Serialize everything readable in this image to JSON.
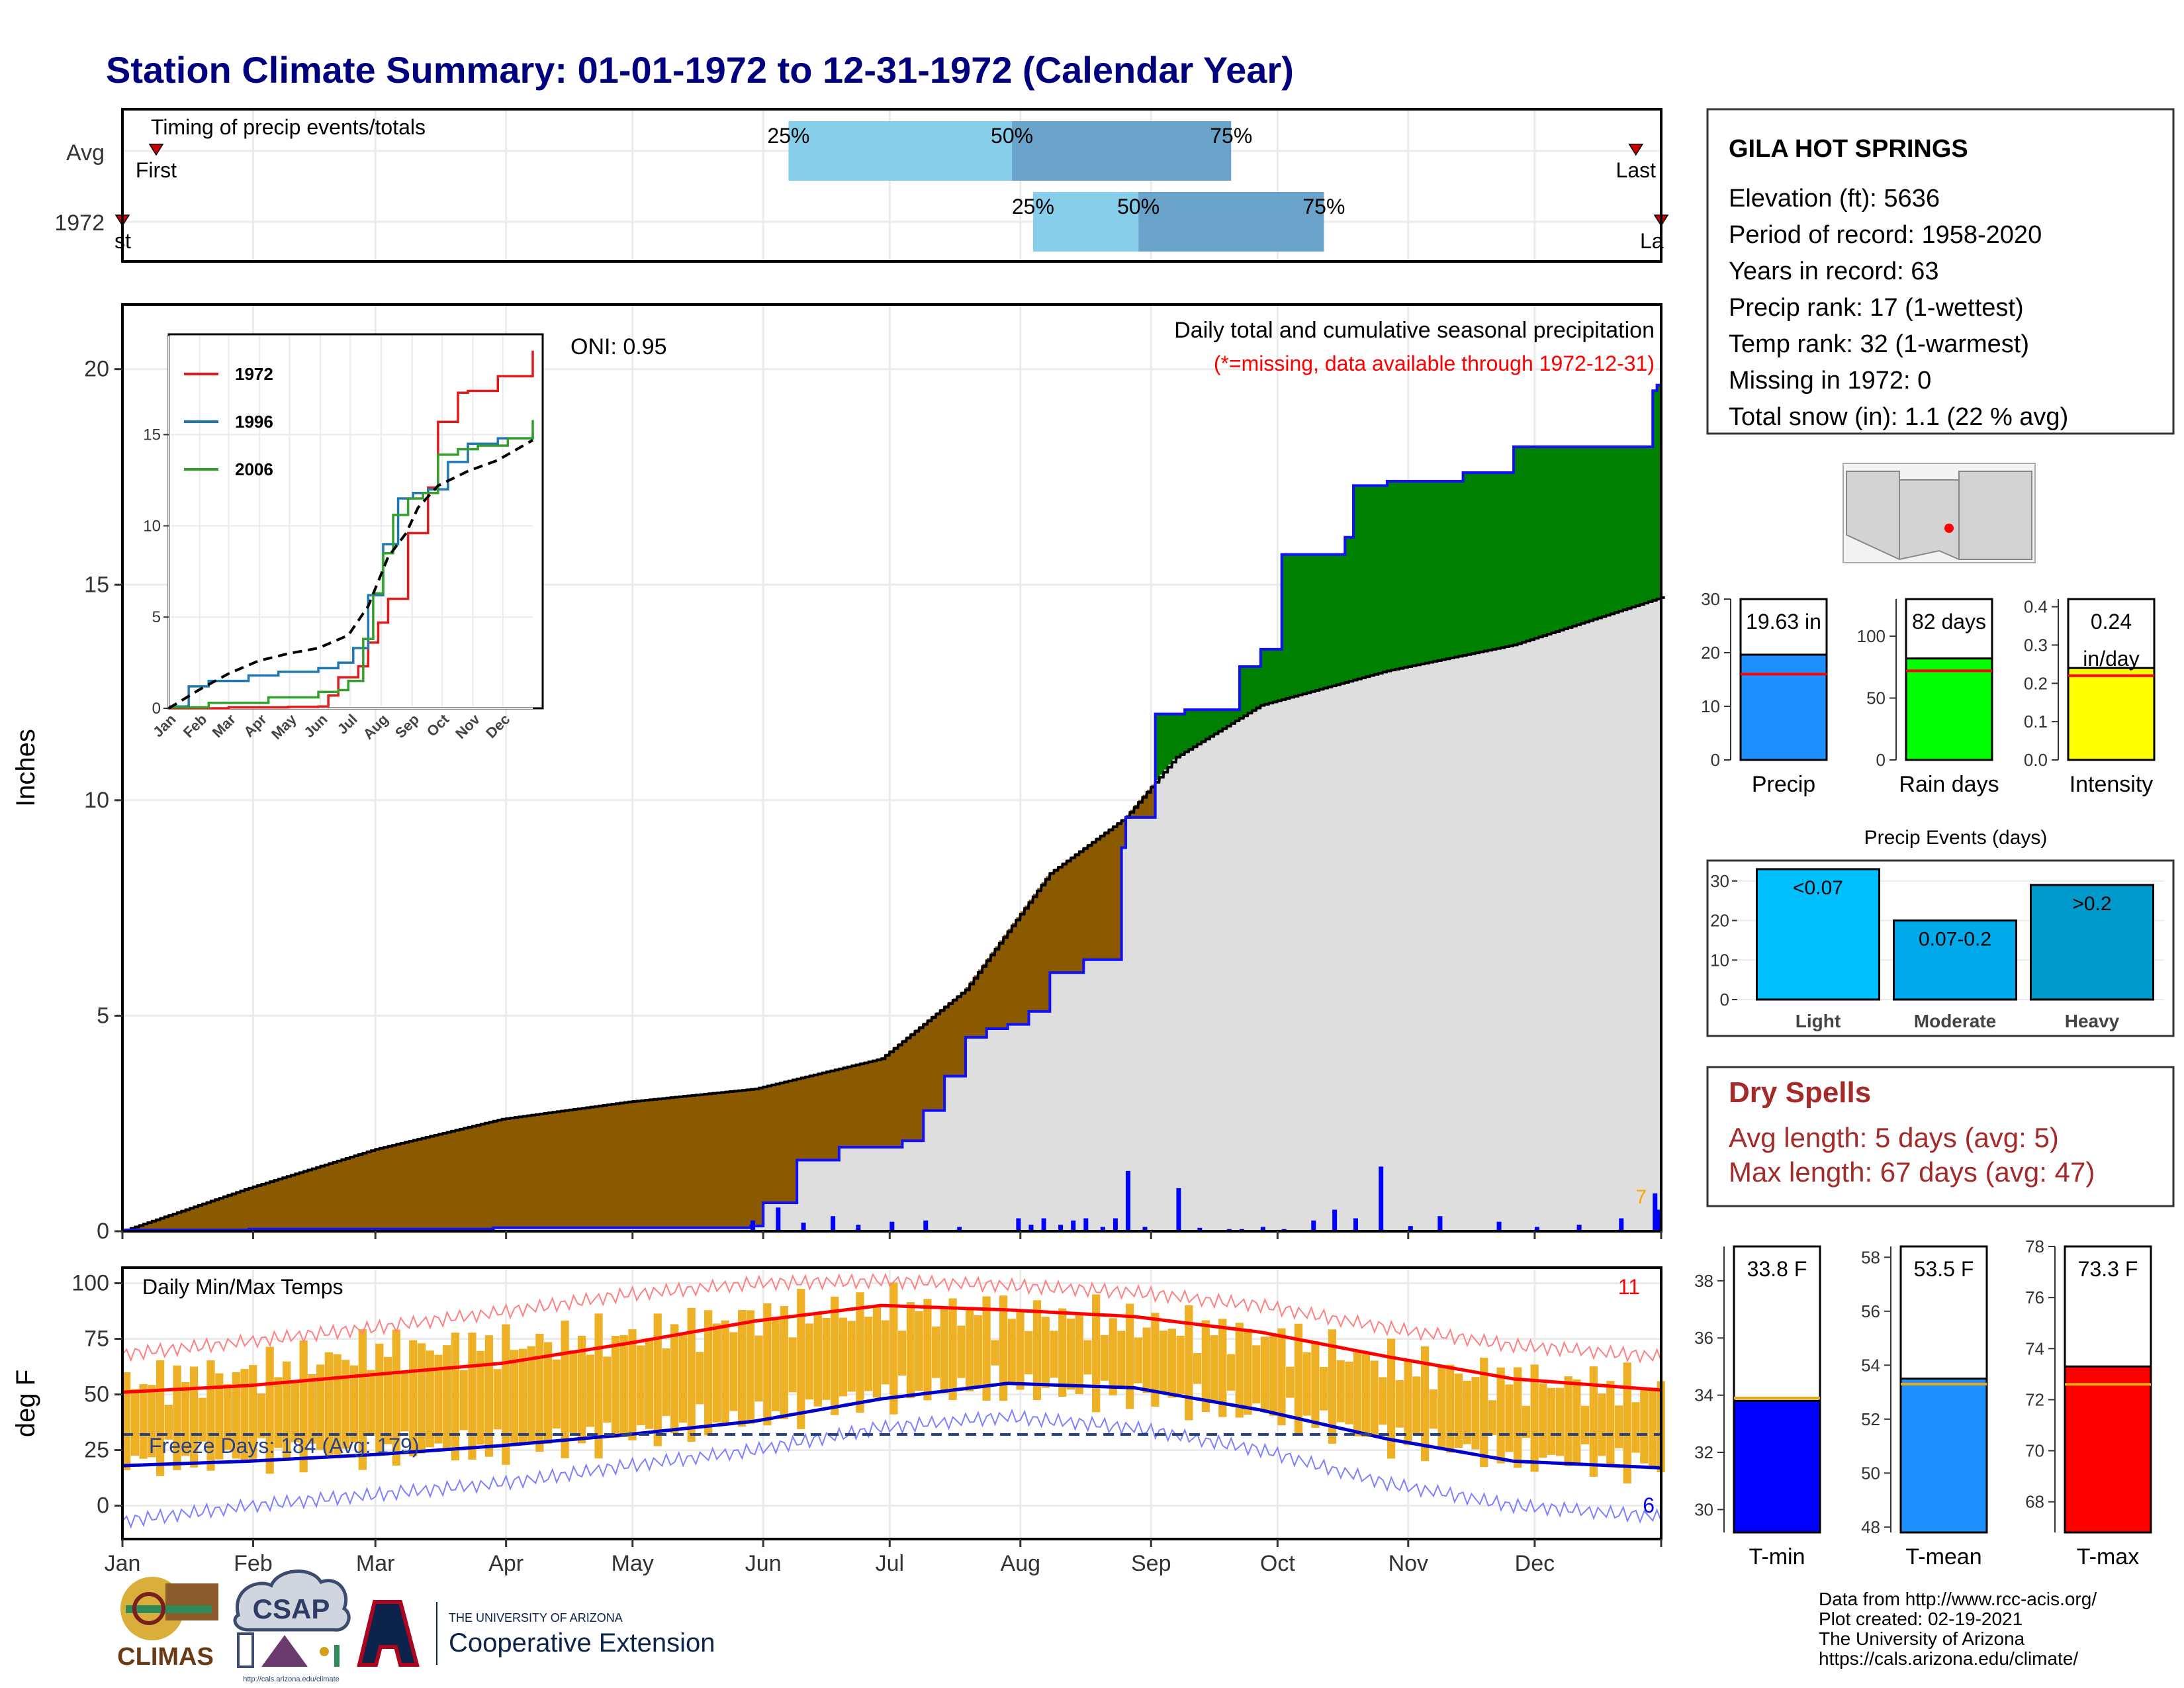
{
  "page_title": "Station Climate Summary: 01-01-1972 to 12-31-1972 (Calendar Year)",
  "colors": {
    "title": "#00007f",
    "q_light": "#87ceeb",
    "q_dark": "#6aa3c9",
    "deficit": "#8b5a00",
    "surplus": "#008000",
    "avg_area": "#dedede",
    "daily_bar": "#0000ff",
    "temp_band": "#eeb125",
    "tmax_line": "#ff0000",
    "tmin_line": "#0000cc",
    "dry_spells": "#a52a2a"
  },
  "month_labels": [
    "Jan",
    "Feb",
    "Mar",
    "Apr",
    "May",
    "Jun",
    "Jul",
    "Aug",
    "Sep",
    "Oct",
    "Nov",
    "Dec"
  ],
  "timing": {
    "title": "Timing of precip events/totals",
    "rows": [
      {
        "label": "Avg",
        "first": "First",
        "last": "Last",
        "q25": "25%",
        "q50": "50%",
        "q75": "75%",
        "first_day": 8,
        "last_day": 359,
        "q25_day": 158,
        "q50_day": 211,
        "q75_day": 263
      },
      {
        "label": "1972",
        "first": "First",
        "last": "Last",
        "q25": "25%",
        "q50": "50%",
        "q75": "75%",
        "first_day": 0,
        "last_day": 365,
        "q25_day": 216,
        "q50_day": 241,
        "q75_day": 285
      }
    ]
  },
  "precip_panel": {
    "ylabel": "Inches",
    "yticks": [
      "0",
      "5",
      "10",
      "15",
      "20"
    ],
    "oni": "ONI: 0.95",
    "title": "Daily total and cumulative seasonal precipitation",
    "subtitle": "(*=missing, data available through 1972-12-31)",
    "count_label": "7"
  },
  "inset": {
    "yticks": [
      "0",
      "5",
      "10",
      "15"
    ],
    "xticks": [
      "Jan",
      "Feb",
      "Mar",
      "Apr",
      "May",
      "Jun",
      "Jul",
      "Aug",
      "Sep",
      "Oct",
      "Nov",
      "Dec"
    ],
    "legend": [
      {
        "name": "1972",
        "color": "#e31a1c"
      },
      {
        "name": "1996",
        "color": "#1f78b4"
      },
      {
        "name": "2006",
        "color": "#33a02c"
      }
    ]
  },
  "temp_panel": {
    "ylabel": "deg F",
    "title": "Daily Min/Max Temps",
    "yticks": [
      "0",
      "25",
      "50",
      "75",
      "100"
    ],
    "freeze": "Freeze Days: 184 (Avg: 179)",
    "max_count": "11",
    "min_count": "6"
  },
  "station": {
    "name": "GILA HOT SPRINGS",
    "lines": [
      "Elevation (ft): 5636",
      "Period of record: 1958-2020",
      "Years in record: 63",
      "Precip rank: 17 (1-wettest)",
      "Temp rank: 32 (1-warmest)",
      "Missing in 1972: 0",
      "Total snow (in): 1.1 (22 % avg)"
    ]
  },
  "dry_spells": {
    "title": "Dry Spells",
    "avg": "Avg length: 5 days (avg: 5)",
    "max": "Max length: 67 days (avg: 47)"
  },
  "footer": {
    "lines": [
      "Data from http://www.rcc-acis.org/",
      "Plot created: 02-19-2021",
      "The University of Arizona",
      "https://cals.arizona.edu/climate/"
    ],
    "logo_climas": "CLIMAS",
    "logo_csap": "CSAP",
    "csap_url": "http://cals.arizona.edu/climate",
    "ua_small": "THE UNIVERSITY OF ARIZONA",
    "ua_big": "Cooperative Extension"
  },
  "chart_data": [
    {
      "type": "line",
      "name": "cumulative_precip_1972_vs_avg",
      "title": "Daily total and cumulative seasonal precipitation",
      "ylabel": "Inches",
      "ylim": [
        0,
        21.5
      ],
      "x_unit": "day of year",
      "series": [
        {
          "name": "1972",
          "x": [
            0,
            30,
            58,
            88,
            118,
            149,
            152,
            155,
            160,
            170,
            185,
            190,
            195,
            200,
            205,
            210,
            215,
            220,
            228,
            237,
            238,
            240,
            245,
            252,
            258,
            260,
            265,
            270,
            275,
            290,
            292,
            295,
            300,
            318,
            330,
            345,
            362,
            363,
            364,
            365
          ],
          "values": [
            0.03,
            0.05,
            0.05,
            0.08,
            0.08,
            0.12,
            0.66,
            0.66,
            1.65,
            1.95,
            2.1,
            2.8,
            3.6,
            4.5,
            4.7,
            4.8,
            5.1,
            6.0,
            6.3,
            8.9,
            9.6,
            9.6,
            12.0,
            12.1,
            12.1,
            12.1,
            13.1,
            13.5,
            15.7,
            16.1,
            17.3,
            17.3,
            17.4,
            17.6,
            18.2,
            18.2,
            18.2,
            19.5,
            19.63,
            19.63
          ]
        },
        {
          "name": "avg",
          "x": [
            0,
            30,
            60,
            90,
            120,
            150,
            180,
            200,
            220,
            238,
            250,
            270,
            300,
            330,
            365
          ],
          "values": [
            0,
            1.0,
            1.9,
            2.6,
            3.0,
            3.3,
            4.0,
            5.6,
            8.3,
            9.6,
            11.0,
            12.2,
            13.0,
            13.6,
            14.7
          ]
        }
      ]
    },
    {
      "type": "bar",
      "name": "daily_precip_1972",
      "ylabel": "Inches",
      "x_unit": "day of year",
      "x": [
        0,
        10,
        58,
        83,
        149,
        155,
        161,
        168,
        174,
        182,
        190,
        198,
        212,
        215,
        218,
        222,
        225,
        228,
        232,
        235,
        238,
        242,
        250,
        255,
        262,
        265,
        270,
        275,
        282,
        287,
        292,
        298,
        305,
        312,
        326,
        335,
        345,
        355,
        363,
        364
      ],
      "values": [
        0.03,
        0.02,
        0.02,
        0.02,
        0.25,
        0.55,
        0.2,
        0.35,
        0.15,
        0.22,
        0.25,
        0.1,
        0.3,
        0.15,
        0.3,
        0.15,
        0.25,
        0.3,
        0.1,
        0.3,
        1.4,
        0.1,
        1.0,
        0.08,
        0.05,
        0.05,
        0.1,
        0.05,
        0.25,
        0.5,
        0.3,
        1.5,
        0.12,
        0.35,
        0.22,
        0.1,
        0.15,
        0.3,
        0.88,
        0.5
      ]
    },
    {
      "type": "bar",
      "name": "summary_bars",
      "groups": [
        {
          "label": "Precip",
          "value": 19.63,
          "avg": 16,
          "text": "19.63 in",
          "ylim": [
            0,
            30
          ],
          "yticks": [
            "0",
            "10",
            "20",
            "30"
          ],
          "color": "#1e90ff"
        },
        {
          "label": "Rain days",
          "value": 82,
          "avg": 72,
          "text": "82 days",
          "ylim": [
            0,
            130
          ],
          "yticks": [
            "0",
            "50",
            "100"
          ],
          "color": "#00ff00"
        },
        {
          "label": "Intensity",
          "value": 0.24,
          "avg": 0.22,
          "text": "0.24 in/day",
          "ylim": [
            0,
            0.42
          ],
          "yticks": [
            "0.0",
            "0.1",
            "0.2",
            "0.3",
            "0.4"
          ],
          "color": "#ffff00"
        }
      ]
    },
    {
      "type": "bar",
      "title": "Precip Events (days)",
      "categories": [
        "Light",
        "Moderate",
        "Heavy"
      ],
      "bar_labels": [
        "<0.07",
        "0.07-0.2",
        ">0.2"
      ],
      "values": [
        33,
        20,
        29
      ],
      "ylim": [
        0,
        32
      ],
      "yticks": [
        "0",
        "10",
        "20",
        "30"
      ],
      "colors": [
        "#00bfff",
        "#00a9ea",
        "#0099cc"
      ]
    },
    {
      "type": "bar",
      "name": "temperature_summary",
      "groups": [
        {
          "label": "T-min",
          "value": 33.8,
          "avg": 33.9,
          "text": "33.8 F",
          "ylim": [
            29.2,
            39.2
          ],
          "yticks": [
            "30",
            "32",
            "34",
            "36",
            "38"
          ],
          "color": "#0000ff"
        },
        {
          "label": "T-mean",
          "value": 53.5,
          "avg": 53.3,
          "text": "53.5 F",
          "ylim": [
            47.8,
            58.4
          ],
          "yticks": [
            "48",
            "50",
            "52",
            "54",
            "56",
            "58"
          ],
          "color": "#1e90ff"
        },
        {
          "label": "T-max",
          "value": 73.3,
          "avg": 72.6,
          "text": "73.3 F",
          "ylim": [
            66.8,
            78
          ],
          "yticks": [
            "68",
            "70",
            "72",
            "74",
            "76",
            "78"
          ],
          "color": "#ff0000"
        }
      ]
    },
    {
      "type": "line",
      "name": "daily_temps_1972",
      "title": "Daily Min/Max Temps",
      "ylabel": "deg F",
      "ylim": [
        -15,
        107
      ],
      "freeze_threshold": 32,
      "x_unit": "day of year",
      "series": [
        {
          "name": "avg_max",
          "x": [
            0,
            30,
            60,
            90,
            120,
            150,
            180,
            210,
            240,
            270,
            300,
            330,
            365
          ],
          "values": [
            51,
            54,
            59,
            64,
            73,
            83,
            90,
            88,
            85,
            78,
            67,
            57,
            52
          ]
        },
        {
          "name": "avg_min",
          "x": [
            0,
            30,
            60,
            90,
            120,
            150,
            180,
            210,
            240,
            270,
            300,
            330,
            365
          ],
          "values": [
            18,
            20,
            23,
            27,
            32,
            38,
            48,
            55,
            53,
            43,
            30,
            20,
            17
          ]
        },
        {
          "name": "record_max",
          "x": [
            0,
            30,
            60,
            90,
            120,
            150,
            180,
            210,
            240,
            270,
            300,
            330,
            365
          ],
          "values": [
            68,
            74,
            80,
            87,
            95,
            100,
            101,
            99,
            96,
            90,
            80,
            72,
            67
          ]
        },
        {
          "name": "record_min",
          "x": [
            0,
            30,
            60,
            90,
            120,
            150,
            180,
            210,
            240,
            270,
            300,
            330,
            365
          ],
          "values": [
            -7,
            0,
            5,
            10,
            18,
            25,
            35,
            40,
            35,
            25,
            10,
            0,
            -5
          ]
        },
        {
          "name": "1972_max",
          "x": [
            0,
            30,
            60,
            90,
            120,
            150,
            180,
            210,
            240,
            270,
            300,
            330,
            365
          ],
          "values": [
            55,
            60,
            70,
            72,
            76,
            85,
            89,
            86,
            82,
            76,
            64,
            56,
            52
          ]
        },
        {
          "name": "1972_min",
          "x": [
            0,
            30,
            60,
            90,
            120,
            150,
            180,
            210,
            240,
            270,
            300,
            330,
            365
          ],
          "values": [
            20,
            22,
            25,
            26,
            32,
            40,
            50,
            54,
            50,
            42,
            30,
            22,
            18
          ]
        }
      ]
    },
    {
      "type": "line",
      "name": "inset_cumulative",
      "ylim": [
        0,
        20.5
      ],
      "x_unit": "day of year",
      "series": [
        {
          "name": "1972",
          "x": [
            0,
            60,
            120,
            150,
            160,
            170,
            190,
            200,
            210,
            220,
            240,
            260,
            270,
            290,
            300,
            330,
            364,
            365
          ],
          "values": [
            0,
            0.05,
            0.08,
            0.1,
            0.7,
            1.7,
            2.3,
            3.6,
            4.7,
            6.0,
            9.6,
            12.1,
            15.7,
            17.3,
            17.4,
            18.2,
            18.2,
            19.6
          ]
        },
        {
          "name": "1996",
          "x": [
            0,
            20,
            40,
            80,
            110,
            150,
            170,
            185,
            200,
            215,
            230,
            245,
            260,
            280,
            300,
            330,
            365
          ],
          "values": [
            0.1,
            1.2,
            1.5,
            1.8,
            2.0,
            2.2,
            2.5,
            3.3,
            6.2,
            9.0,
            11.5,
            11.8,
            12.0,
            13.5,
            14.5,
            14.8,
            15.1
          ]
        },
        {
          "name": "2006",
          "x": [
            0,
            40,
            100,
            150,
            170,
            180,
            195,
            205,
            215,
            225,
            240,
            255,
            270,
            290,
            310,
            340,
            365
          ],
          "values": [
            0.05,
            0.3,
            0.6,
            0.9,
            1.0,
            1.5,
            3.8,
            6.3,
            8.5,
            10.6,
            11.5,
            11.8,
            13.9,
            14.2,
            14.4,
            14.8,
            15.8
          ]
        },
        {
          "name": "avg",
          "x": [
            0,
            30,
            60,
            90,
            120,
            150,
            180,
            200,
            220,
            238,
            250,
            270,
            300,
            330,
            365
          ],
          "values": [
            0,
            1.0,
            1.9,
            2.6,
            3.0,
            3.3,
            4.0,
            5.6,
            8.3,
            9.6,
            11.0,
            12.2,
            13.0,
            13.6,
            14.7
          ]
        }
      ]
    }
  ]
}
